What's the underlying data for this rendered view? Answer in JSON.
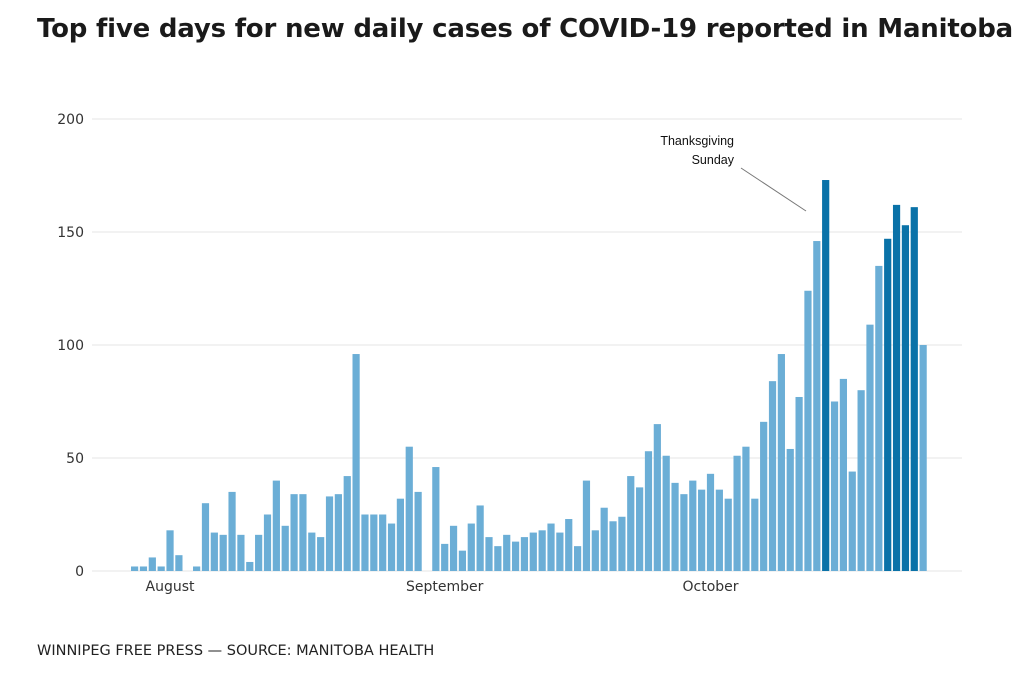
{
  "chart_data": {
    "type": "bar",
    "title": "Top five days for new daily cases of COVID-19 reported in Manitoba",
    "source": "WINNIPEG FREE PRESS — SOURCE: MANITOBA HEALTH",
    "xlabel": "",
    "ylabel": "",
    "ylim": [
      0,
      200
    ],
    "yticks": [
      0,
      50,
      100,
      150,
      200
    ],
    "grid": true,
    "month_labels": [
      {
        "label": "August",
        "index": 4
      },
      {
        "label": "September",
        "index": 35
      },
      {
        "label": "October",
        "index": 65
      }
    ],
    "values": [
      2,
      2,
      6,
      2,
      18,
      7,
      0,
      2,
      30,
      17,
      16,
      35,
      16,
      4,
      16,
      25,
      40,
      20,
      34,
      34,
      17,
      15,
      33,
      34,
      42,
      96,
      25,
      25,
      25,
      21,
      32,
      55,
      35,
      0,
      46,
      12,
      20,
      9,
      21,
      29,
      15,
      11,
      16,
      13,
      15,
      17,
      18,
      21,
      17,
      23,
      11,
      40,
      18,
      28,
      22,
      24,
      42,
      37,
      53,
      65,
      51,
      39,
      34,
      40,
      36,
      43,
      36,
      32,
      51,
      55,
      32,
      66,
      84,
      96,
      54,
      77,
      124,
      146,
      173,
      75,
      85,
      44,
      80,
      109,
      135,
      147,
      162,
      153,
      161,
      100
    ],
    "highlight_indices": [
      78,
      85,
      86,
      87,
      88
    ],
    "colors": {
      "normal": "#6baed6",
      "highlight": "#0a72a8",
      "grid": "#e6e6e6"
    },
    "annotation": {
      "lines": [
        "Thanksgiving",
        "Sunday"
      ],
      "target_index": 78
    }
  }
}
